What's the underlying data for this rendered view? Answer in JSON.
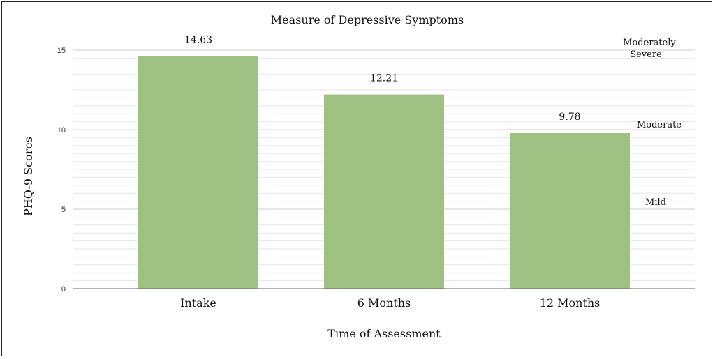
{
  "chart_data": {
    "type": "bar",
    "title": "Measure of Depressive Symptoms",
    "xlabel": "Time of Assessment",
    "ylabel": "PHQ-9 Scores",
    "categories": [
      "Intake",
      "6 Months",
      "12 Months"
    ],
    "values": [
      14.63,
      12.21,
      9.78
    ],
    "data_labels": [
      "14.63",
      "12.21",
      "9.78"
    ],
    "ylim": [
      0,
      15
    ],
    "yticks": [
      0,
      5,
      10,
      15
    ],
    "minor_gridlines": true,
    "legend": "none",
    "bar_color": "#9dc183",
    "severity_annotations": [
      {
        "lines": [
          "Moderately",
          "Severe"
        ]
      },
      {
        "lines": [
          "Moderate"
        ]
      },
      {
        "lines": [
          "Mild"
        ]
      }
    ]
  }
}
